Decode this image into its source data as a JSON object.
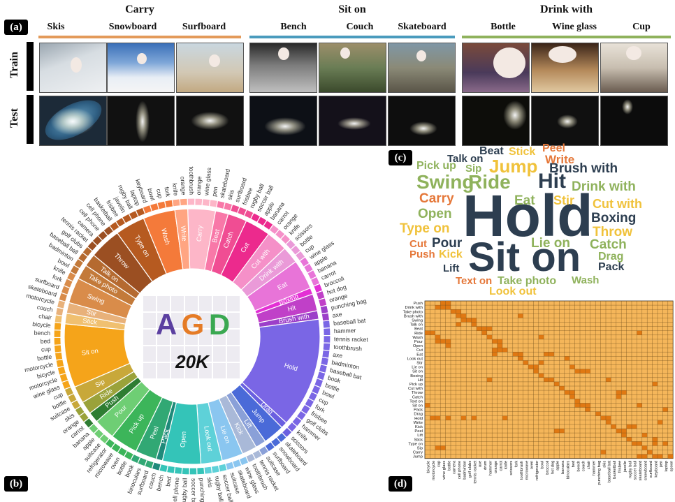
{
  "panel_labels": {
    "a": "(a)",
    "b": "(b)",
    "c": "(c)",
    "d": "(d)"
  },
  "groups": [
    {
      "title": "Carry",
      "color": "#e39a5a",
      "categories": [
        "Skis",
        "Snowboard",
        "Surfboard"
      ]
    },
    {
      "title": "Sit on",
      "color": "#4a9bbd",
      "categories": [
        "Bench",
        "Couch",
        "Skateboard"
      ]
    },
    {
      "title": "Drink with",
      "color": "#8fb25c",
      "categories": [
        "Bottle",
        "Wine glass",
        "Cup"
      ]
    }
  ],
  "rows": {
    "train": "Train",
    "test": "Test"
  },
  "center": {
    "title_letters": [
      "A",
      "G",
      "D"
    ],
    "title_colors": [
      "#5b3fa0",
      "#e57b26",
      "#3aa851"
    ],
    "count": "20K"
  },
  "affordance_ring": [
    {
      "label": "Carry",
      "color": "#fdb6c8"
    },
    {
      "label": "Beat",
      "color": "#f878a8"
    },
    {
      "label": "Catch",
      "color": "#f04d93"
    },
    {
      "label": "Cut",
      "color": "#ec2a8d"
    },
    {
      "label": "Cut with",
      "color": "#f590c8"
    },
    {
      "label": "Drink with",
      "color": "#ea9ad8"
    },
    {
      "label": "Eat",
      "color": "#e874d8"
    },
    {
      "label": "Boxing",
      "color": "#e42fd5"
    },
    {
      "label": "Hit",
      "color": "#c040c8"
    },
    {
      "label": "Brush with",
      "color": "#9c3fc9"
    },
    {
      "label": "Hold",
      "color": "#7a66e5"
    },
    {
      "label": "Drag",
      "color": "#6a5fe0"
    },
    {
      "label": "Jump",
      "color": "#4a6ad8"
    },
    {
      "label": "Lift",
      "color": "#8aa0d8"
    },
    {
      "label": "Kick",
      "color": "#a9b9d8"
    },
    {
      "label": "Lie on",
      "color": "#8ac6f0"
    },
    {
      "label": "Look out",
      "color": "#5ed1d8"
    },
    {
      "label": "Open",
      "color": "#34c4b8"
    },
    {
      "label": "Pack",
      "color": "#1f8a7a"
    },
    {
      "label": "Peel",
      "color": "#31a874"
    },
    {
      "label": "Pick up",
      "color": "#3cb55a"
    },
    {
      "label": "Pour",
      "color": "#6ece74"
    },
    {
      "label": "Push",
      "color": "#2e7d32"
    },
    {
      "label": "Ride",
      "color": "#9aa23a"
    },
    {
      "label": "Sip",
      "color": "#c8a83a"
    },
    {
      "label": "Sit on",
      "color": "#f5a41a"
    },
    {
      "label": "Stick",
      "color": "#f0c070"
    },
    {
      "label": "Stir",
      "color": "#e8b17a"
    },
    {
      "label": "Swing",
      "color": "#d98c4a"
    },
    {
      "label": "Take photo",
      "color": "#c37a3a"
    },
    {
      "label": "Talk on",
      "color": "#b56a30"
    },
    {
      "label": "Throw",
      "color": "#9b4f22"
    },
    {
      "label": "Type on",
      "color": "#b65a20"
    },
    {
      "label": "Wash",
      "color": "#f47a3a"
    },
    {
      "label": "Write",
      "color": "#ffa582"
    }
  ],
  "object_labels": [
    "toothbrush",
    "orange",
    "wine glass",
    "pen",
    "skateboard",
    "skis",
    "surfboard",
    "frisbee",
    "rugby ball",
    "soccer ball",
    "apple",
    "banana",
    "carrot",
    "orange",
    "knife",
    "scissors",
    "bottle",
    "cup",
    "wine glass",
    "apple",
    "banana",
    "carrot",
    "broccoli",
    "hot dog",
    "orange",
    "punching bag",
    "axe",
    "baseball bat",
    "hammer",
    "tennis racket",
    "toothbrush",
    "axe",
    "badminton",
    "baseball bat",
    "book",
    "bottle",
    "bowl",
    "cup",
    "fork",
    "frisbee",
    "golf clubs",
    "hammer",
    "knife",
    "scissors",
    "skateboard",
    "snowboard",
    "surfboard",
    "suitcase",
    "tennis racket",
    "toothbrush",
    "wine glass",
    "skateboard",
    "suitcase",
    "soccer ball",
    "rugby ball",
    "skis",
    "punching bag",
    "soccer ball",
    "rugby ball",
    "cell phone",
    "bed",
    "bench",
    "couch",
    "surfboard",
    "binoculars",
    "book",
    "bottle",
    "oven",
    "microwave",
    "refrigerator",
    "suitcase",
    "apple",
    "banana",
    "carrot",
    "orange",
    "skis",
    "suitcase",
    "bottle",
    "cup",
    "wine glass",
    "motorcycle",
    "bicycle",
    "motorcycle",
    "bottle",
    "cup",
    "bed",
    "bench",
    "bicycle",
    "chair",
    "couch",
    "motorcycle",
    "skateboard",
    "surfboard",
    "fork",
    "knife",
    "bowl",
    "badminton",
    "baseball ball",
    "golf clubs",
    "tennis racket",
    "camera",
    "cell phone",
    "cell phone",
    "basketball",
    "frisbee",
    "javelin",
    "rugby ball",
    "laptop",
    "keyboard",
    "bowl",
    "cup",
    "fork",
    "knife",
    "orange"
  ],
  "word_cloud": [
    {
      "text": "Hold",
      "color": "#2d3e50"
    },
    {
      "text": "Sit on",
      "color": "#2d3e50"
    },
    {
      "text": "Hit",
      "color": "#2d3e50"
    },
    {
      "text": "Jump",
      "color": "#f0c23b"
    },
    {
      "text": "Ride",
      "color": "#8fb25c"
    },
    {
      "text": "Swing",
      "color": "#8fb25c"
    },
    {
      "text": "Brush with",
      "color": "#2d3e50"
    },
    {
      "text": "Drink with",
      "color": "#8fb25c"
    },
    {
      "text": "Talk on",
      "color": "#2d3e50"
    },
    {
      "text": "Beat",
      "color": "#2d3e50"
    },
    {
      "text": "Stick",
      "color": "#f0c23b"
    },
    {
      "text": "Peel",
      "color": "#e5783a"
    },
    {
      "text": "Write",
      "color": "#e5783a"
    },
    {
      "text": "Pick up",
      "color": "#8fb25c"
    },
    {
      "text": "Sip",
      "color": "#8fb25c"
    },
    {
      "text": "Carry",
      "color": "#e5783a"
    },
    {
      "text": "Eat",
      "color": "#8fb25c"
    },
    {
      "text": "Stir",
      "color": "#f0c23b"
    },
    {
      "text": "Cut with",
      "color": "#f0c23b"
    },
    {
      "text": "Open",
      "color": "#8fb25c"
    },
    {
      "text": "Boxing",
      "color": "#2d3e50"
    },
    {
      "text": "Type on",
      "color": "#f0c23b"
    },
    {
      "text": "Throw",
      "color": "#f0c23b"
    },
    {
      "text": "Cut",
      "color": "#e5783a"
    },
    {
      "text": "Pour",
      "color": "#2d3e50"
    },
    {
      "text": "Lie on",
      "color": "#8fb25c"
    },
    {
      "text": "Catch",
      "color": "#8fb25c"
    },
    {
      "text": "Push",
      "color": "#e5783a"
    },
    {
      "text": "Kick",
      "color": "#f0c23b"
    },
    {
      "text": "Drag",
      "color": "#8fb25c"
    },
    {
      "text": "Lift",
      "color": "#2d3e50"
    },
    {
      "text": "Pack",
      "color": "#2d3e50"
    },
    {
      "text": "Text on",
      "color": "#e5783a"
    },
    {
      "text": "Take photo",
      "color": "#8fb25c"
    },
    {
      "text": "Wash",
      "color": "#8fb25c"
    },
    {
      "text": "Look out",
      "color": "#f0c23b"
    }
  ],
  "matrix": {
    "background": "#f5b65a",
    "cell_color": "#e07812",
    "rows": [
      "Push",
      "Drink with",
      "Take photo",
      "Brush with",
      "Swing",
      "Talk on",
      "Beat",
      "Ride",
      "Wash",
      "Pour",
      "Open",
      "Cut",
      "Eat",
      "Look out",
      "Stir",
      "Lie on",
      "Sit on",
      "Boxing",
      "Hit",
      "Pick up",
      "Cut with",
      "Throw",
      "Catch",
      "Text on",
      "Sit on",
      "Pack",
      "Drag",
      "Hold",
      "Write",
      "Kick",
      "Peel",
      "Lift",
      "Stick",
      "Type on",
      "Sip",
      "Carry",
      "Jump"
    ],
    "cols": [
      "bicycle",
      "motorcycle",
      "cup",
      "wine glass",
      "bottle",
      "camera",
      "cell phone",
      "badminton",
      "golf clubs",
      "tennis racket",
      "axe",
      "drum",
      "hammer",
      "orange",
      "carrot",
      "knife",
      "scissors",
      "fork",
      "toothbrush",
      "microwave",
      "oven",
      "refrigerator",
      "bowl",
      "broccoli",
      "hot dog",
      "apple",
      "banana",
      "binoculars",
      "bed",
      "bench",
      "couch",
      "chair",
      "hammer",
      "punching bag",
      "skis",
      "baseball bat",
      "basketball",
      "frisbee",
      "javelin",
      "rugby ball",
      "soccer ball",
      "skateboard",
      "snowboard",
      "surfboard",
      "keyboard",
      "pen",
      "laptop",
      "spoon"
    ]
  }
}
